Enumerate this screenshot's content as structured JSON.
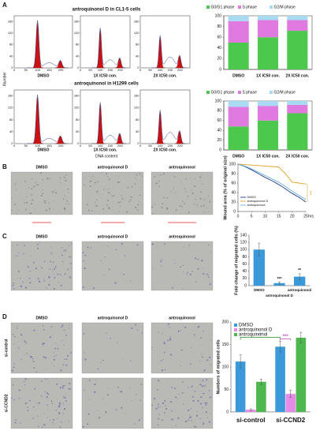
{
  "panels": [
    "A",
    "B",
    "C",
    "D"
  ],
  "flow": {
    "titles": [
      "antroquinonol D in CL1-5 cells",
      "antroquinonol in H1299 cells"
    ],
    "ylabel": "Number",
    "xlabel": "DNA content",
    "conditions": [
      "DMSO",
      "1X IC50 con.",
      "2X IC50 con."
    ],
    "yticks": [
      0,
      40,
      80,
      120,
      160
    ],
    "xticks": [
      0,
      50,
      100,
      150,
      200
    ]
  },
  "micrographs": {
    "treatments": [
      "DMSO",
      "antroquinonol D",
      "antroquinonol"
    ],
    "rows": [
      "si-control",
      "si-CCND2"
    ]
  },
  "chart_data": [
    {
      "type": "stacked_bar",
      "categories": [
        "DMSO",
        "1X IC50 con.",
        "2X IC50 con."
      ],
      "series": [
        {
          "name": "G0/G1 phase",
          "color": "#4cc94c",
          "values": [
            50,
            60,
            72
          ]
        },
        {
          "name": "S phase",
          "color": "#e07ae0",
          "values": [
            40,
            32,
            20
          ]
        },
        {
          "name": "G2/M phase",
          "color": "#a8daf2",
          "values": [
            10,
            8,
            8
          ]
        }
      ],
      "ylim": [
        0,
        100
      ],
      "yticks": [
        0,
        20,
        40,
        60,
        80,
        100
      ]
    },
    {
      "type": "stacked_bar",
      "categories": [
        "DMSO",
        "1X IC50 con.",
        "2X IC50 con."
      ],
      "series": [
        {
          "name": "G0/G1 phase",
          "color": "#4cc94c",
          "values": [
            48,
            60,
            75
          ]
        },
        {
          "name": "S phase",
          "color": "#e07ae0",
          "values": [
            40,
            30,
            17
          ]
        },
        {
          "name": "G2/M phase",
          "color": "#a8daf2",
          "values": [
            12,
            10,
            8
          ]
        }
      ],
      "ylim": [
        0,
        100
      ],
      "yticks": [
        0,
        20,
        40,
        60,
        80,
        100
      ]
    },
    {
      "type": "line",
      "ylabel": "Wound area (% of original size)",
      "xlabel": "hrs",
      "annotation": "***",
      "x": [
        0,
        2.5,
        5,
        7.5,
        10,
        12.5,
        15,
        17.5,
        20,
        22.5,
        25
      ],
      "series": [
        {
          "name": "DMSO",
          "color": "#1f3e8a",
          "values": [
            100,
            95,
            88,
            80,
            72,
            65,
            57,
            48,
            38,
            30,
            20
          ]
        },
        {
          "name": "antroquinonol D",
          "color": "#e0a020",
          "values": [
            100,
            99,
            98,
            97,
            96,
            95,
            94,
            80,
            62,
            60,
            58
          ]
        },
        {
          "name": "antroquinonol",
          "color": "#6bb0d8",
          "values": [
            100,
            96,
            90,
            83,
            76,
            69,
            62,
            53,
            43,
            34,
            25
          ]
        }
      ],
      "xlim": [
        0,
        25
      ],
      "xticks": [
        0,
        5,
        10,
        15,
        20,
        25
      ],
      "ylim": [
        0,
        100
      ],
      "yticks": [
        0,
        20,
        40,
        60,
        80,
        100
      ]
    },
    {
      "type": "bar",
      "ylabel": "Fold change of migrated cells (%)",
      "categories": [
        "DMSO",
        "antroquinonol D",
        "antroquinonol"
      ],
      "values": [
        100,
        7,
        25
      ],
      "errors": [
        18,
        3,
        8
      ],
      "annotations": [
        null,
        "***",
        "**"
      ],
      "color": "#3a9ad9",
      "ylim": [
        0,
        140
      ],
      "yticks": [
        0,
        20,
        40,
        60,
        80,
        100,
        120,
        140
      ]
    },
    {
      "type": "grouped_bar",
      "ylabel": "Numbers of migrated cells",
      "categories": [
        "si-control",
        "si-CCND2"
      ],
      "series": [
        {
          "name": "DMSO",
          "color": "#3a9ad9",
          "values": [
            112,
            145
          ],
          "errors": [
            15,
            12
          ]
        },
        {
          "name": "antroquinonol D",
          "color": "#e58ae6",
          "values": [
            5,
            40
          ],
          "errors": [
            2,
            8
          ]
        },
        {
          "name": "antroquinonol",
          "color": "#4db84d",
          "values": [
            67,
            165
          ],
          "errors": [
            6,
            12
          ]
        }
      ],
      "annotations": [
        "*",
        "***"
      ],
      "ylim": [
        0,
        200
      ],
      "yticks": [
        0,
        50,
        100,
        150,
        200
      ]
    }
  ]
}
